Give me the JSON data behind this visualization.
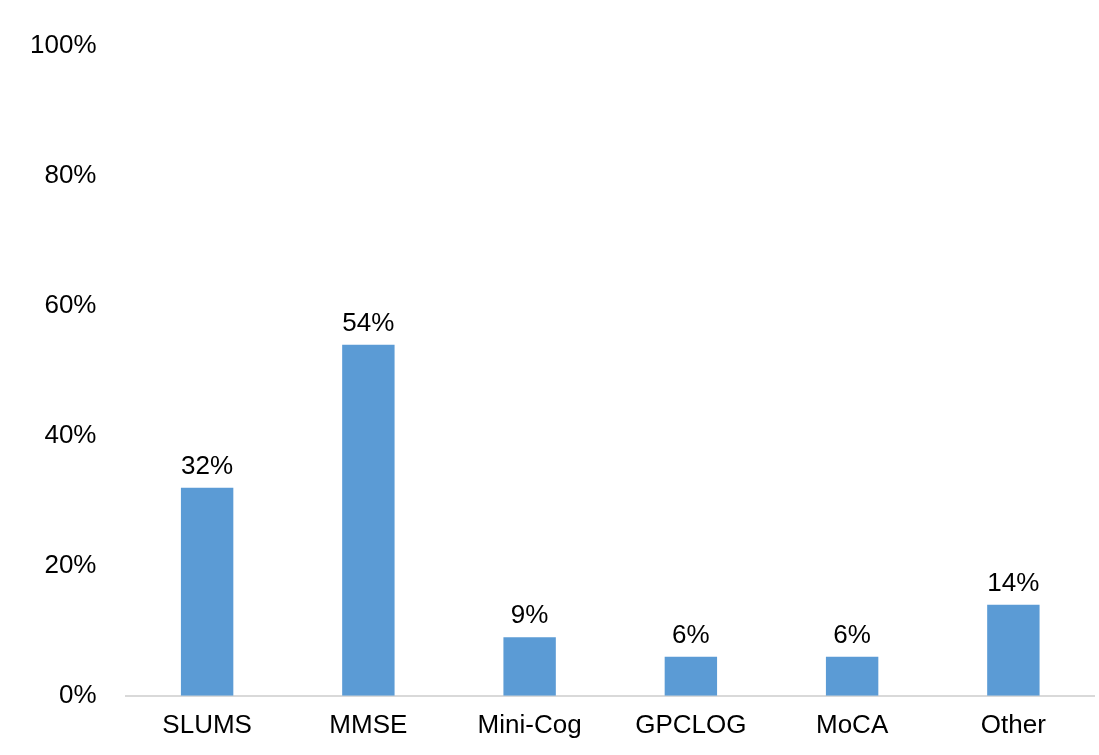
{
  "chart_data": {
    "type": "bar",
    "categories": [
      "SLUMS",
      "MMSE",
      "Mini-Cog",
      "GPCLOG",
      "MoCA",
      "Other"
    ],
    "values": [
      32,
      54,
      9,
      6,
      6,
      14
    ],
    "color": "#5b9bd5",
    "value_labels": [
      "32%",
      "54%",
      "9%",
      "6%",
      "6%",
      "14%"
    ],
    "ylim": [
      0,
      100
    ],
    "yticks": [
      {
        "value": 0,
        "label": "0%"
      },
      {
        "value": 20,
        "label": "20%"
      },
      {
        "value": 40,
        "label": "40%"
      },
      {
        "value": 60,
        "label": "60%"
      },
      {
        "value": 80,
        "label": "80%"
      },
      {
        "value": 100,
        "label": "100%"
      }
    ],
    "grid": false,
    "legend": false
  }
}
